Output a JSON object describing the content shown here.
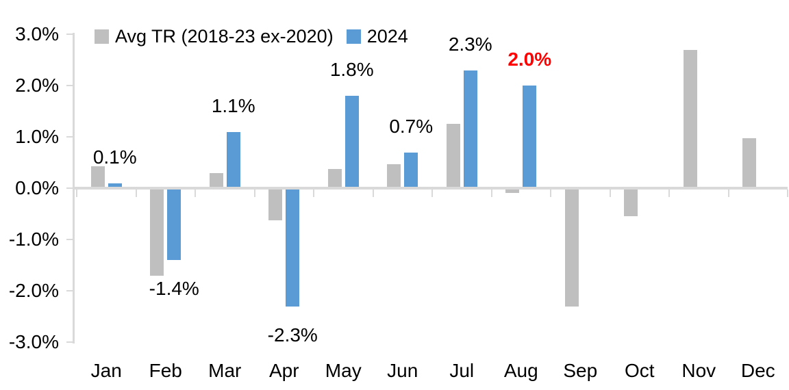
{
  "chart_data": {
    "type": "bar",
    "title": "",
    "categories": [
      "Jan",
      "Feb",
      "Mar",
      "Apr",
      "May",
      "Jun",
      "Jul",
      "Aug",
      "Sep",
      "Oct",
      "Nov",
      "Dec"
    ],
    "series": [
      {
        "name": "Avg TR (2018-23 ex-2020)",
        "color": "#BFBFBF",
        "values": [
          0.43,
          -1.7,
          0.3,
          -0.63,
          0.37,
          0.47,
          1.25,
          -0.09,
          -2.3,
          -0.55,
          2.7,
          0.97
        ]
      },
      {
        "name": "2024",
        "color": "#5B9BD5",
        "values": [
          0.1,
          -1.4,
          1.1,
          -2.3,
          1.8,
          0.7,
          2.3,
          2.0,
          null,
          null,
          null,
          null
        ],
        "data_labels": [
          {
            "text": "0.1%",
            "color": "#000000",
            "bold": false
          },
          {
            "text": "-1.4%",
            "color": "#000000",
            "bold": false
          },
          {
            "text": "1.1%",
            "color": "#000000",
            "bold": false
          },
          {
            "text": "-2.3%",
            "color": "#000000",
            "bold": false
          },
          {
            "text": "1.8%",
            "color": "#000000",
            "bold": false
          },
          {
            "text": "0.7%",
            "color": "#000000",
            "bold": false
          },
          {
            "text": "2.3%",
            "color": "#000000",
            "bold": false
          },
          {
            "text": "2.0%",
            "color": "#FF0000",
            "bold": true
          },
          null,
          null,
          null,
          null
        ]
      }
    ],
    "y_axis": {
      "min": -3,
      "max": 3,
      "tick_step": 1,
      "tick_labels": [
        "3.0%",
        "2.0%",
        "1.0%",
        "0.0%",
        "-1.0%",
        "-2.0%",
        "-3.0%"
      ]
    },
    "legend_position": "top",
    "grid": false,
    "axis_color": "#D9D9D9",
    "text_color": "#000000"
  }
}
